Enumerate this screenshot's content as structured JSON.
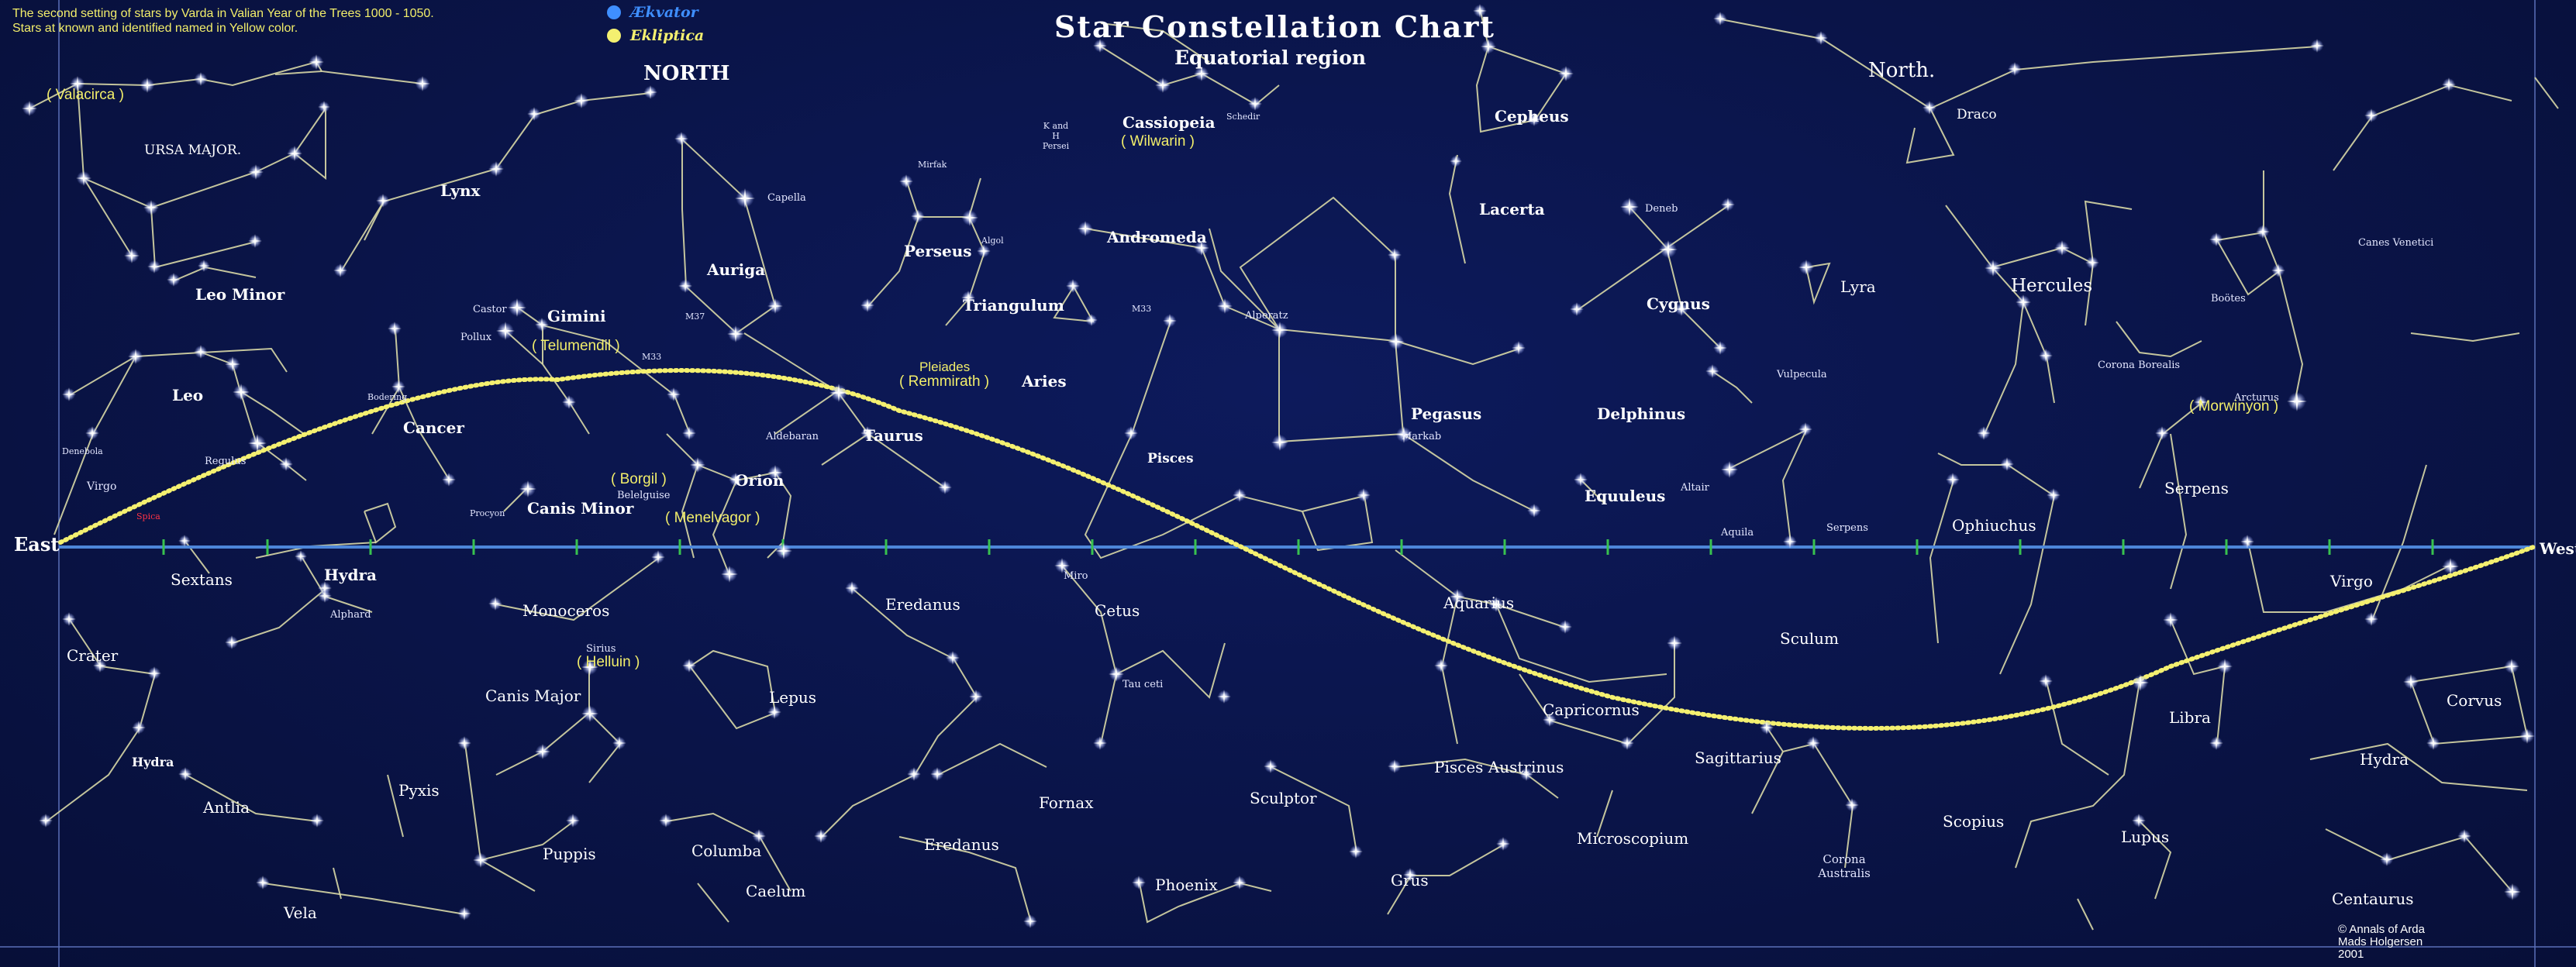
{
  "header": {
    "note_line1": "The second setting of stars by Varda in Valian Year of the Trees 1000 - 1050.",
    "note_line2": "Stars at known and identified named in Yellow color.",
    "title": "Star Constellation Chart",
    "subtitle": "Equatorial region",
    "legend": [
      {
        "label": "Ækvator",
        "color": "#3f8fff"
      },
      {
        "label": "Ekliptica",
        "color": "#f4f070"
      }
    ]
  },
  "sides": {
    "east": "East",
    "west": "West"
  },
  "copyright": [
    "© Annals of Arda",
    "Mads Holgersen",
    "2001"
  ],
  "colors": {
    "background": "#0a1346",
    "equator": "#4d86d9",
    "ecliptic": "#f4f070",
    "lines": "#d8d8a6",
    "highlight": "#f2ee6a"
  },
  "constellations": {
    "north_big": [
      "NORTH",
      "North."
    ],
    "bold": [
      "Cassiopeia",
      "Cepheus",
      "Lacerta",
      "Andromeda",
      "Perseus",
      "Triangulum",
      "Aries",
      "Auriga",
      "Gimini",
      "Cancer",
      "Leo",
      "Leo Minor",
      "Lynx",
      "Orion",
      "Taurus",
      "Canis Minor",
      "Pisces",
      "Pegasus",
      "Delphinus",
      "Equuleus",
      "Cygnus",
      "Lyra",
      "Hercules",
      "Ophiuchus",
      "Serpens"
    ],
    "medium": [
      "URSA MAJOR.",
      "Draco",
      "Sextans",
      "Hydra",
      "Monoceros",
      "Eredanus",
      "Cetus",
      "Aquarius",
      "Sculum",
      "Virgo",
      "Crater",
      "Canis Major",
      "Lepus",
      "Capricornus",
      "Sagittarius",
      "Libra",
      "Corvus",
      "Hydra",
      "Antlia",
      "Pyxis",
      "Puppis",
      "Columba",
      "Caelum",
      "Eredanus",
      "Fornax",
      "Sculptor",
      "Phoenix",
      "Grus",
      "Pisces Austrinus",
      "Microscopium",
      "Scopius",
      "Lupus",
      "Centaurus",
      "Vela",
      "Hydra",
      "Corona Australis",
      "Corona Borealis",
      "Vulpecula",
      "Boötes",
      "Canes Venetici",
      "Virgo"
    ],
    "stars": [
      "Capella",
      "Castor",
      "Pollux",
      "Aldebaran",
      "Regulus",
      "Bodering",
      "Denebola",
      "Procyon",
      "Belelguise",
      "Alphard",
      "Sirius",
      "Miro",
      "Tau ceti",
      "Alperatz",
      "Markab",
      "Deneb",
      "Altair",
      "Aquila",
      "Serpens",
      "Arcturus",
      "M33",
      "M37",
      "Algol",
      "Mirfak",
      "K and H Persei",
      "Schedir",
      "Spica"
    ],
    "yellow": [
      "( Valacirca )",
      "( Telumendil )",
      "( Remmirath )",
      "( Wilwarin )",
      "( Borgil )",
      "( Menelvagor )",
      "( Helluin )",
      "( Morwinyon )",
      "Pleiades"
    ]
  }
}
